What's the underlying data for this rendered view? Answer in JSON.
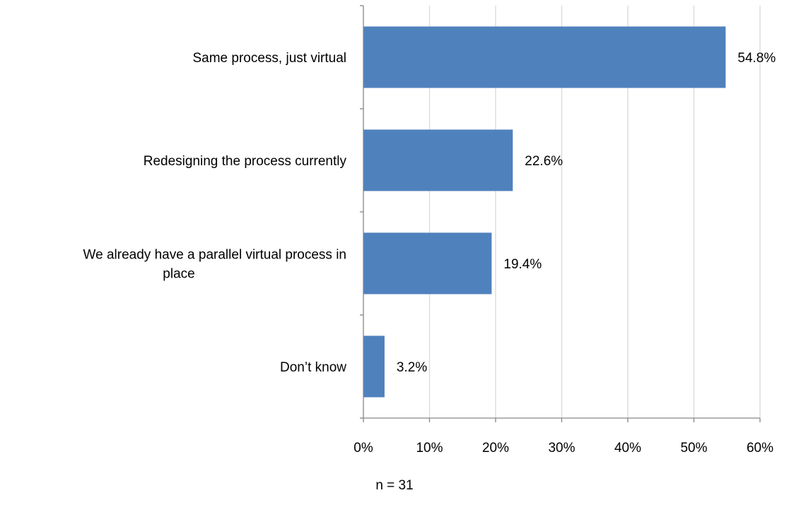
{
  "chart_data": {
    "type": "bar",
    "orientation": "horizontal",
    "categories": [
      "Same process, just virtual",
      "Redesigning the process currently",
      "We already have a parallel virtual process in place",
      "Don’t know"
    ],
    "category_label_lines": [
      [
        "Same process, just virtual"
      ],
      [
        "Redesigning the process currently"
      ],
      [
        "We already have a parallel virtual process in",
        "place"
      ],
      [
        "Don’t know"
      ]
    ],
    "values": [
      54.8,
      22.6,
      19.4,
      3.2
    ],
    "data_labels": [
      "54.8%",
      "22.6%",
      "19.4%",
      "3.2%"
    ],
    "xlim": [
      0,
      60
    ],
    "x_ticks": [
      0,
      10,
      20,
      30,
      40,
      50,
      60
    ],
    "x_tick_labels": [
      "0%",
      "10%",
      "20%",
      "30%",
      "40%",
      "50%",
      "60%"
    ],
    "grid": "vertical",
    "bar_color": "#4F81BD",
    "grid_color": "#D9D9D9",
    "axis_color": "#868686"
  },
  "footnote": "n = 31"
}
